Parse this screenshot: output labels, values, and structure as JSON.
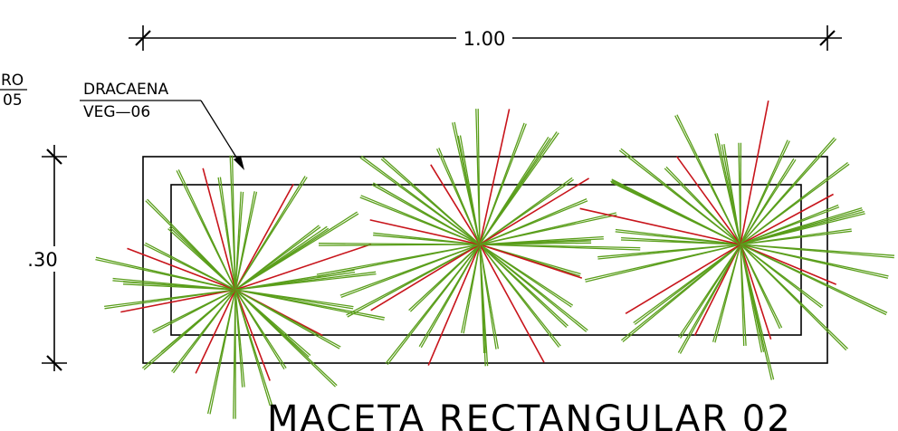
{
  "dimension_width": {
    "value": "1.00"
  },
  "dimension_height": {
    "value": ".30"
  },
  "plant_callout": {
    "line1": "DRACAENA",
    "line2": "VEG—06"
  },
  "partial_callout": {
    "line1": "RO",
    "line2": "05"
  },
  "title": {
    "text": "MACETA  RECTANGULAR  02"
  },
  "colors": {
    "outline": "#000000",
    "leaf_green": "#5a9e1b",
    "leaf_red": "#c8141b",
    "background": "#ffffff"
  },
  "plants": [
    {
      "name": "dracaena-1",
      "leaf_count": 40
    },
    {
      "name": "dracaena-2",
      "leaf_count": 42
    },
    {
      "name": "dracaena-3",
      "leaf_count": 42
    }
  ]
}
